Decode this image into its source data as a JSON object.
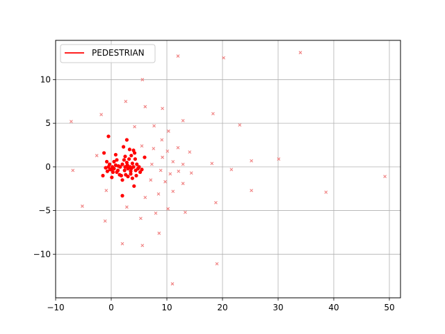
{
  "chart_data": {
    "type": "scatter",
    "title": "",
    "xlabel": "",
    "ylabel": "",
    "xlim": [
      -10,
      52
    ],
    "ylim": [
      -15,
      14.5
    ],
    "xticks": [
      -10,
      0,
      10,
      20,
      30,
      40,
      50
    ],
    "yticks": [
      -10,
      -5,
      0,
      5,
      10
    ],
    "xtick_labels": [
      "−10",
      "0",
      "10",
      "20",
      "30",
      "40",
      "50"
    ],
    "ytick_labels": [
      "−10",
      "−5",
      "0",
      "5",
      "10"
    ],
    "grid": true,
    "legend": {
      "position": "top-left",
      "entries": [
        {
          "label": "PEDESTRIAN",
          "color": "#ff0000",
          "marker": "line"
        }
      ]
    },
    "series": [
      {
        "name": "PEDESTRIAN",
        "marker": "dot",
        "color": "#ff0000",
        "points": [
          [
            -0.5,
            3.5
          ],
          [
            -1.3,
            1.6
          ],
          [
            -0.8,
            0.6
          ],
          [
            -1.5,
            -1.0
          ],
          [
            -1.0,
            -0.1
          ],
          [
            -0.5,
            0.0
          ],
          [
            -0.3,
            0.3
          ],
          [
            0.0,
            -0.3
          ],
          [
            0.2,
            0.0
          ],
          [
            0.3,
            -0.6
          ],
          [
            0.5,
            0.6
          ],
          [
            0.5,
            -0.2
          ],
          [
            0.8,
            1.4
          ],
          [
            0.8,
            0.2
          ],
          [
            1.0,
            0.8
          ],
          [
            1.2,
            -0.4
          ],
          [
            1.3,
            0.1
          ],
          [
            1.5,
            -0.9
          ],
          [
            1.6,
            0.0
          ],
          [
            1.8,
            -1.0
          ],
          [
            2.0,
            0.3
          ],
          [
            2.0,
            -1.5
          ],
          [
            2.2,
            2.3
          ],
          [
            2.3,
            0.8
          ],
          [
            2.4,
            -0.4
          ],
          [
            2.5,
            0.0
          ],
          [
            2.5,
            1.2
          ],
          [
            2.6,
            -0.9
          ],
          [
            2.8,
            3.1
          ],
          [
            2.8,
            0.5
          ],
          [
            3.0,
            -0.2
          ],
          [
            3.0,
            -1.1
          ],
          [
            3.2,
            0.9
          ],
          [
            3.3,
            2.0
          ],
          [
            3.4,
            0.0
          ],
          [
            3.5,
            -0.5
          ],
          [
            3.6,
            1.3
          ],
          [
            3.6,
            -0.2
          ],
          [
            3.8,
            0.4
          ],
          [
            3.8,
            -1.3
          ],
          [
            4.0,
            1.9
          ],
          [
            4.0,
            0.0
          ],
          [
            4.1,
            -2.2
          ],
          [
            4.2,
            1.6
          ],
          [
            4.3,
            0.9
          ],
          [
            4.4,
            -0.4
          ],
          [
            4.5,
            -1.0
          ],
          [
            4.6,
            0.3
          ],
          [
            4.8,
            -0.2
          ],
          [
            5.0,
            0.0
          ],
          [
            5.2,
            -0.6
          ],
          [
            5.5,
            -0.3
          ],
          [
            6.0,
            1.1
          ],
          [
            2.0,
            -3.3
          ],
          [
            -0.2,
            -0.3
          ],
          [
            0.1,
            -1.2
          ],
          [
            -0.7,
            -0.5
          ],
          [
            1.0,
            -0.6
          ],
          [
            3.5,
            -0.8
          ],
          [
            2.9,
            0.2
          ]
        ]
      },
      {
        "name": "",
        "marker": "x",
        "color": "#f08080",
        "points": [
          [
            34.0,
            13.1
          ],
          [
            12.0,
            12.7
          ],
          [
            20.2,
            12.5
          ],
          [
            5.6,
            10.0
          ],
          [
            2.6,
            7.5
          ],
          [
            6.1,
            6.9
          ],
          [
            9.2,
            6.7
          ],
          [
            -1.8,
            6.0
          ],
          [
            18.3,
            6.1
          ],
          [
            -7.2,
            5.2
          ],
          [
            12.9,
            5.3
          ],
          [
            23.1,
            4.8
          ],
          [
            4.2,
            4.6
          ],
          [
            7.7,
            4.7
          ],
          [
            10.3,
            4.1
          ],
          [
            9.1,
            3.1
          ],
          [
            5.5,
            2.4
          ],
          [
            7.6,
            2.1
          ],
          [
            10.1,
            1.8
          ],
          [
            12.0,
            2.2
          ],
          [
            14.1,
            1.7
          ],
          [
            -2.6,
            1.3
          ],
          [
            9.2,
            1.1
          ],
          [
            11.1,
            0.6
          ],
          [
            18.1,
            0.4
          ],
          [
            25.2,
            0.7
          ],
          [
            30.1,
            0.9
          ],
          [
            12.9,
            0.3
          ],
          [
            7.3,
            0.3
          ],
          [
            8.9,
            -0.4
          ],
          [
            12.1,
            -0.5
          ],
          [
            21.6,
            -0.3
          ],
          [
            14.4,
            -0.7
          ],
          [
            -6.9,
            -0.4
          ],
          [
            10.6,
            -0.8
          ],
          [
            49.2,
            -1.1
          ],
          [
            7.1,
            -1.5
          ],
          [
            9.7,
            -1.7
          ],
          [
            12.9,
            -1.9
          ],
          [
            25.2,
            -2.7
          ],
          [
            38.6,
            -2.9
          ],
          [
            -0.9,
            -2.7
          ],
          [
            11.1,
            -2.8
          ],
          [
            8.5,
            -3.1
          ],
          [
            6.1,
            -3.5
          ],
          [
            18.8,
            -4.1
          ],
          [
            -5.2,
            -4.5
          ],
          [
            2.8,
            -4.6
          ],
          [
            10.2,
            -4.8
          ],
          [
            13.3,
            -5.2
          ],
          [
            8.0,
            -5.3
          ],
          [
            5.3,
            -5.9
          ],
          [
            -1.1,
            -6.2
          ],
          [
            8.6,
            -7.6
          ],
          [
            2.0,
            -8.8
          ],
          [
            5.6,
            -9.0
          ],
          [
            19.0,
            -11.1
          ],
          [
            11.0,
            -13.4
          ]
        ]
      }
    ]
  }
}
